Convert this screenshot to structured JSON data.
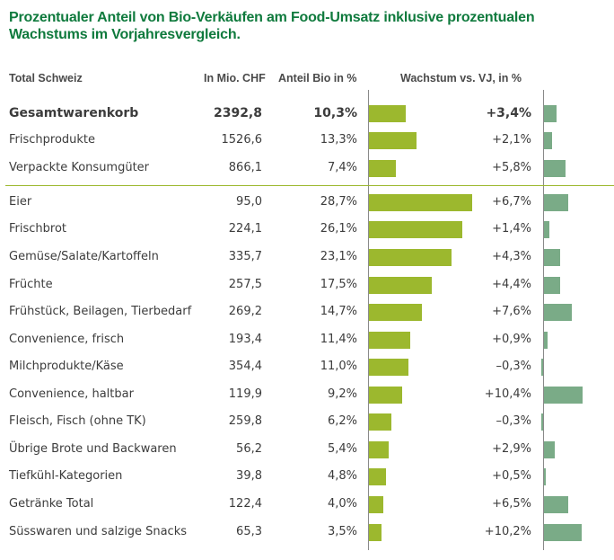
{
  "title": "Prozentualer Anteil von Bio-Verkäufen am Food-Umsatz inklusive prozentualen Wachstums im Vorjahresvergleich.",
  "headers": {
    "category": "Total Schweiz",
    "value": "In Mio. CHF",
    "share": "Anteil Bio in %",
    "growth": "Wachstum vs. VJ, in %"
  },
  "colors": {
    "title": "#0f7a3d",
    "share_bar": "#9cb82e",
    "growth_bar": "#7aab87",
    "separator": "#9cb82e"
  },
  "chart_data": {
    "type": "bar",
    "title": "Prozentualer Anteil von Bio-Verkäufen am Food-Umsatz inklusive prozentualen Wachstums im Vorjahresvergleich.",
    "categories": [
      "Gesamtwarenkorb",
      "Frischprodukte",
      "Verpackte Konsumgüter",
      "Eier",
      "Frischbrot",
      "Gemüse/Salate/Kartoffeln",
      "Früchte",
      "Frühstück, Beilagen, Tierbedarf",
      "Convenience, frisch",
      "Milchprodukte/Käse",
      "Convenience, haltbar",
      "Fleisch, Fisch (ohne TK)",
      "Übrige Brote und Backwaren",
      "Tiefkühl-Kategorien",
      "Getränke Total",
      "Süsswaren und salzige Snacks"
    ],
    "series": [
      {
        "name": "In Mio. CHF",
        "values": [
          2392.8,
          1526.6,
          866.1,
          95.0,
          224.1,
          335.7,
          257.5,
          269.2,
          193.4,
          354.4,
          119.9,
          259.8,
          56.2,
          39.8,
          122.4,
          65.3
        ]
      },
      {
        "name": "Anteil Bio in %",
        "values": [
          10.3,
          13.3,
          7.4,
          28.7,
          26.1,
          23.1,
          17.5,
          14.7,
          11.4,
          11.0,
          9.2,
          6.2,
          5.4,
          4.8,
          4.0,
          3.5
        ]
      },
      {
        "name": "Wachstum vs. VJ, in %",
        "values": [
          3.4,
          2.1,
          5.8,
          6.7,
          1.4,
          4.3,
          4.4,
          7.6,
          0.9,
          -0.3,
          10.4,
          -0.3,
          2.9,
          0.5,
          6.5,
          10.2
        ]
      }
    ],
    "rows": [
      {
        "category": "Gesamtwarenkorb",
        "value": "2392,8",
        "share": "10,3%",
        "growth": "+3,4%",
        "share_num": 10.3,
        "growth_num": 3.4,
        "bold": true
      },
      {
        "category": "Frischprodukte",
        "value": "1526,6",
        "share": "13,3%",
        "growth": "+2,1%",
        "share_num": 13.3,
        "growth_num": 2.1
      },
      {
        "category": "Verpackte Konsumgüter",
        "value": "866,1",
        "share": "7,4%",
        "growth": "+5,8%",
        "share_num": 7.4,
        "growth_num": 5.8
      },
      {
        "category": "Eier",
        "value": "95,0",
        "share": "28,7%",
        "growth": "+6,7%",
        "share_num": 28.7,
        "growth_num": 6.7
      },
      {
        "category": "Frischbrot",
        "value": "224,1",
        "share": "26,1%",
        "growth": "+1,4%",
        "share_num": 26.1,
        "growth_num": 1.4
      },
      {
        "category": "Gemüse/Salate/Kartoffeln",
        "value": "335,7",
        "share": "23,1%",
        "growth": "+4,3%",
        "share_num": 23.1,
        "growth_num": 4.3
      },
      {
        "category": "Früchte",
        "value": "257,5",
        "share": "17,5%",
        "growth": "+4,4%",
        "share_num": 17.5,
        "growth_num": 4.4
      },
      {
        "category": "Frühstück, Beilagen, Tierbedarf",
        "value": "269,2",
        "share": "14,7%",
        "growth": "+7,6%",
        "share_num": 14.7,
        "growth_num": 7.6
      },
      {
        "category": "Convenience, frisch",
        "value": "193,4",
        "share": "11,4%",
        "growth": "+0,9%",
        "share_num": 11.4,
        "growth_num": 0.9
      },
      {
        "category": "Milchprodukte/Käse",
        "value": "354,4",
        "share": "11,0%",
        "growth": "–0,3%",
        "share_num": 11.0,
        "growth_num": -0.3
      },
      {
        "category": "Convenience, haltbar",
        "value": "119,9",
        "share": "9,2%",
        "growth": "+10,4%",
        "share_num": 9.2,
        "growth_num": 10.4
      },
      {
        "category": "Fleisch, Fisch (ohne TK)",
        "value": "259,8",
        "share": "6,2%",
        "growth": "–0,3%",
        "share_num": 6.2,
        "growth_num": -0.3
      },
      {
        "category": "Übrige Brote und Backwaren",
        "value": "56,2",
        "share": "5,4%",
        "growth": "+2,9%",
        "share_num": 5.4,
        "growth_num": 2.9
      },
      {
        "category": "Tiefkühl-Kategorien",
        "value": "39,8",
        "share": "4,8%",
        "growth": "+0,5%",
        "share_num": 4.8,
        "growth_num": 0.5
      },
      {
        "category": "Getränke Total",
        "value": "122,4",
        "share": "4,0%",
        "growth": "+6,5%",
        "share_num": 4.0,
        "growth_num": 6.5
      },
      {
        "category": "Süsswaren und salzige Snacks",
        "value": "65,3",
        "share": "3,5%",
        "growth": "+10,2%",
        "share_num": 3.5,
        "growth_num": 10.2
      }
    ],
    "group_separator_after_row": 2,
    "share_axis_range": [
      0,
      30
    ],
    "growth_axis_range": [
      -1,
      11
    ],
    "grid": false,
    "legend": "none"
  }
}
